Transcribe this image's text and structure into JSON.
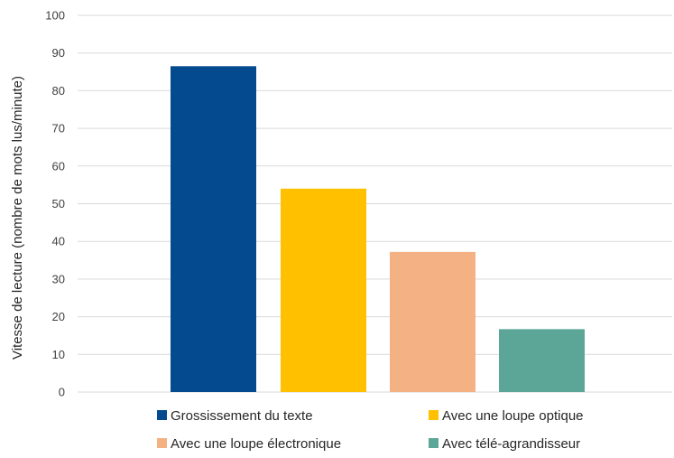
{
  "chart_data": {
    "type": "bar",
    "title": "",
    "xlabel": "",
    "ylabel": "Vitesse de lecture (nombre de mots lus/minute)",
    "ylim": [
      0,
      100
    ],
    "yticks": [
      0,
      10,
      20,
      30,
      40,
      50,
      60,
      70,
      80,
      90,
      100
    ],
    "grid": true,
    "legend_position": "bottom",
    "series": [
      {
        "name": "Grossissement du texte",
        "value": 86.5,
        "color": "#034A8F"
      },
      {
        "name": "Avec une loupe optique",
        "value": 54,
        "color": "#FFC000"
      },
      {
        "name": "Avec une loupe électronique",
        "value": 37.2,
        "color": "#F4B183"
      },
      {
        "name": "Avec télé-agrandisseur",
        "value": 16.7,
        "color": "#5BA697"
      }
    ]
  }
}
